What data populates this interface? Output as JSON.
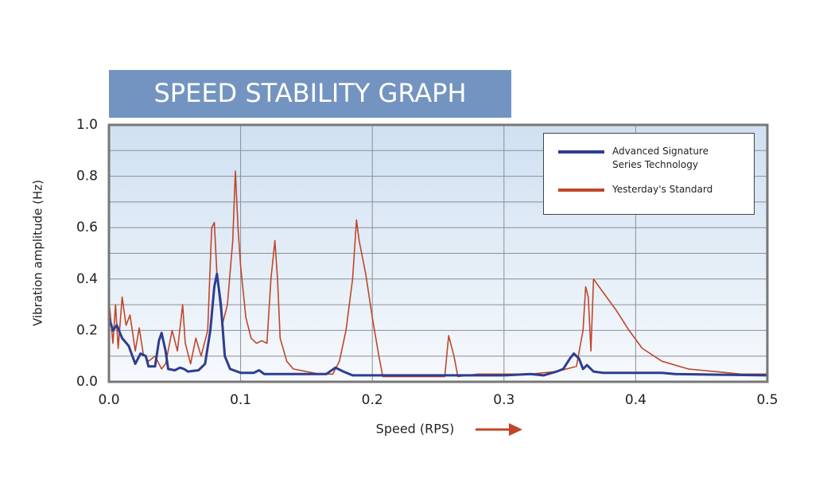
{
  "chart_data": {
    "type": "line",
    "title": "SPEED STABILITY GRAPH",
    "x_label": "Speed (RPS)",
    "y_label": "Vibration amplitude (Hz)",
    "xlim": [
      0,
      0.5
    ],
    "xticks": [
      {
        "value": 0,
        "label": "0.0"
      },
      0.1,
      0.2,
      0.3,
      0.4,
      0.5
    ],
    "ylim": [
      0,
      1
    ],
    "yticks": [
      {
        "value": 0,
        "label": "0.0"
      },
      0.2,
      0.4,
      0.6,
      0.8,
      {
        "value": 1,
        "label": "1.0"
      }
    ],
    "minor_yticks": [
      0.1,
      0.3,
      0.5,
      0.7,
      0.9
    ],
    "grid": true,
    "legend": "upper right",
    "series": [
      {
        "name": "Advanced Signature Series Technology",
        "color": "#2e3d8f",
        "x": [
          0,
          0.003,
          0.006,
          0.01,
          0.015,
          0.02,
          0.024,
          0.028,
          0.03,
          0.035,
          0.038,
          0.04,
          0.043,
          0.045,
          0.05,
          0.054,
          0.057,
          0.06,
          0.068,
          0.073,
          0.077,
          0.08,
          0.082,
          0.085,
          0.088,
          0.092,
          0.1,
          0.11,
          0.114,
          0.118,
          0.15,
          0.165,
          0.172,
          0.178,
          0.185,
          0.3,
          0.32,
          0.33,
          0.34,
          0.345,
          0.35,
          0.353,
          0.357,
          0.36,
          0.363,
          0.368,
          0.375,
          0.42,
          0.43,
          0.5
        ],
        "values": [
          0.25,
          0.2,
          0.22,
          0.17,
          0.14,
          0.07,
          0.11,
          0.1,
          0.06,
          0.06,
          0.16,
          0.19,
          0.12,
          0.05,
          0.045,
          0.055,
          0.05,
          0.04,
          0.045,
          0.07,
          0.2,
          0.37,
          0.42,
          0.3,
          0.1,
          0.05,
          0.035,
          0.035,
          0.045,
          0.03,
          0.03,
          0.03,
          0.055,
          0.04,
          0.025,
          0.025,
          0.03,
          0.025,
          0.04,
          0.05,
          0.09,
          0.11,
          0.09,
          0.05,
          0.065,
          0.04,
          0.035,
          0.035,
          0.03,
          0.025
        ]
      },
      {
        "name": "Yesterday's Standard",
        "color": "#c0462a",
        "x": [
          0,
          0.003,
          0.005,
          0.007,
          0.01,
          0.013,
          0.016,
          0.02,
          0.023,
          0.026,
          0.03,
          0.035,
          0.04,
          0.043,
          0.048,
          0.052,
          0.056,
          0.058,
          0.062,
          0.066,
          0.07,
          0.075,
          0.078,
          0.08,
          0.082,
          0.086,
          0.09,
          0.094,
          0.096,
          0.098,
          0.1,
          0.104,
          0.108,
          0.112,
          0.116,
          0.12,
          0.123,
          0.126,
          0.128,
          0.13,
          0.135,
          0.14,
          0.15,
          0.16,
          0.17,
          0.175,
          0.18,
          0.185,
          0.188,
          0.19,
          0.195,
          0.2,
          0.205,
          0.208,
          0.255,
          0.258,
          0.262,
          0.265,
          0.28,
          0.32,
          0.34,
          0.355,
          0.36,
          0.362,
          0.364,
          0.366,
          0.368,
          0.375,
          0.385,
          0.395,
          0.405,
          0.42,
          0.44,
          0.46,
          0.48,
          0.5
        ],
        "values": [
          0.32,
          0.15,
          0.3,
          0.13,
          0.33,
          0.22,
          0.26,
          0.12,
          0.21,
          0.11,
          0.08,
          0.1,
          0.05,
          0.07,
          0.2,
          0.12,
          0.3,
          0.15,
          0.07,
          0.17,
          0.1,
          0.2,
          0.6,
          0.62,
          0.42,
          0.22,
          0.3,
          0.55,
          0.82,
          0.6,
          0.45,
          0.25,
          0.17,
          0.15,
          0.16,
          0.15,
          0.4,
          0.55,
          0.4,
          0.17,
          0.08,
          0.05,
          0.04,
          0.03,
          0.03,
          0.08,
          0.2,
          0.4,
          0.63,
          0.55,
          0.42,
          0.25,
          0.1,
          0.02,
          0.02,
          0.18,
          0.1,
          0.02,
          0.03,
          0.03,
          0.04,
          0.06,
          0.2,
          0.37,
          0.33,
          0.12,
          0.4,
          0.35,
          0.28,
          0.2,
          0.13,
          0.08,
          0.05,
          0.04,
          0.03,
          0.03
        ]
      }
    ]
  }
}
